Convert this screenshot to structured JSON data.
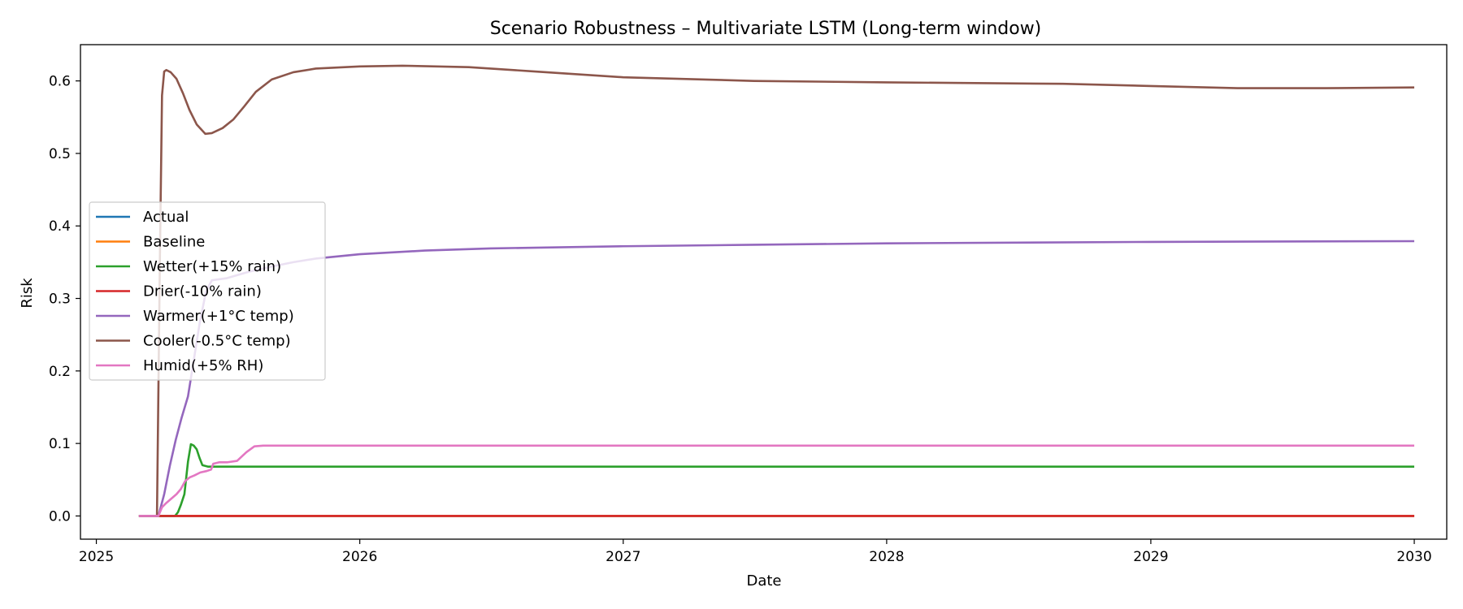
{
  "chart_data": {
    "type": "line",
    "title": "Scenario Robustness – Multivariate LSTM (Long-term window)",
    "xlabel": "Date",
    "ylabel": "Risk",
    "x_type": "date",
    "xlim": [
      "2024-12-10",
      "2030-02-15"
    ],
    "ylim": [
      -0.032,
      0.65
    ],
    "x_ticks": [
      {
        "value": "2025-01-01",
        "label": "2025"
      },
      {
        "value": "2026-01-01",
        "label": "2026"
      },
      {
        "value": "2027-01-01",
        "label": "2027"
      },
      {
        "value": "2028-01-01",
        "label": "2028"
      },
      {
        "value": "2029-01-01",
        "label": "2029"
      },
      {
        "value": "2030-01-01",
        "label": "2030"
      }
    ],
    "y_ticks": [
      0.0,
      0.1,
      0.2,
      0.3,
      0.4,
      0.5,
      0.6
    ],
    "y_tick_labels": [
      "0.0",
      "0.1",
      "0.2",
      "0.3",
      "0.4",
      "0.5",
      "0.6"
    ],
    "grid": false,
    "legend": {
      "position": "center-left"
    },
    "series": [
      {
        "name": "Actual",
        "color": "#1f77b4",
        "points": [
          [
            "2025-03-01",
            0.0
          ],
          [
            "2030-01-01",
            0.0
          ]
        ]
      },
      {
        "name": "Baseline",
        "color": "#ff7f0e",
        "points": [
          [
            "2025-03-01",
            0.0
          ],
          [
            "2030-01-01",
            0.0
          ]
        ]
      },
      {
        "name": "Wetter(+15% rain)",
        "color": "#2ca02c",
        "points": [
          [
            "2025-03-01",
            0.0
          ],
          [
            "2025-04-20",
            0.0
          ],
          [
            "2025-04-24",
            0.005
          ],
          [
            "2025-04-28",
            0.015
          ],
          [
            "2025-05-03",
            0.03
          ],
          [
            "2025-05-08",
            0.075
          ],
          [
            "2025-05-12",
            0.099
          ],
          [
            "2025-05-16",
            0.097
          ],
          [
            "2025-05-20",
            0.092
          ],
          [
            "2025-05-24",
            0.08
          ],
          [
            "2025-05-28",
            0.07
          ],
          [
            "2025-06-05",
            0.068
          ],
          [
            "2030-01-01",
            0.068
          ]
        ]
      },
      {
        "name": "Drier(-10% rain)",
        "color": "#d62728",
        "points": [
          [
            "2025-03-01",
            0.0
          ],
          [
            "2030-01-01",
            0.0
          ]
        ]
      },
      {
        "name": "Warmer(+1°C temp)",
        "color": "#9467bd",
        "points": [
          [
            "2025-03-01",
            0.0
          ],
          [
            "2025-03-28",
            0.0
          ],
          [
            "2025-04-05",
            0.03
          ],
          [
            "2025-04-13",
            0.07
          ],
          [
            "2025-04-21",
            0.105
          ],
          [
            "2025-04-29",
            0.135
          ],
          [
            "2025-05-08",
            0.165
          ],
          [
            "2025-05-16",
            0.215
          ],
          [
            "2025-05-24",
            0.265
          ],
          [
            "2025-06-02",
            0.31
          ],
          [
            "2025-06-10",
            0.325
          ],
          [
            "2025-07-01",
            0.328
          ],
          [
            "2025-08-01",
            0.337
          ],
          [
            "2025-09-01",
            0.344
          ],
          [
            "2025-10-01",
            0.35
          ],
          [
            "2025-11-01",
            0.355
          ],
          [
            "2026-01-01",
            0.361
          ],
          [
            "2026-04-01",
            0.366
          ],
          [
            "2026-07-01",
            0.369
          ],
          [
            "2027-01-01",
            0.372
          ],
          [
            "2027-07-01",
            0.374
          ],
          [
            "2028-01-01",
            0.376
          ],
          [
            "2029-01-01",
            0.378
          ],
          [
            "2030-01-01",
            0.379
          ]
        ]
      },
      {
        "name": "Cooler(-0.5°C temp)",
        "color": "#8c564b",
        "points": [
          [
            "2025-03-01",
            0.0
          ],
          [
            "2025-03-20",
            0.0
          ],
          [
            "2025-03-26",
            0.0
          ],
          [
            "2025-03-30",
            0.35
          ],
          [
            "2025-04-02",
            0.58
          ],
          [
            "2025-04-05",
            0.613
          ],
          [
            "2025-04-08",
            0.615
          ],
          [
            "2025-04-14",
            0.612
          ],
          [
            "2025-04-22",
            0.603
          ],
          [
            "2025-05-01",
            0.583
          ],
          [
            "2025-05-10",
            0.56
          ],
          [
            "2025-05-20",
            0.54
          ],
          [
            "2025-06-01",
            0.527
          ],
          [
            "2025-06-10",
            0.528
          ],
          [
            "2025-06-25",
            0.535
          ],
          [
            "2025-07-10",
            0.547
          ],
          [
            "2025-07-25",
            0.565
          ],
          [
            "2025-08-10",
            0.585
          ],
          [
            "2025-09-01",
            0.602
          ],
          [
            "2025-10-01",
            0.612
          ],
          [
            "2025-11-01",
            0.617
          ],
          [
            "2026-01-01",
            0.62
          ],
          [
            "2026-03-01",
            0.621
          ],
          [
            "2026-06-01",
            0.619
          ],
          [
            "2026-09-01",
            0.613
          ],
          [
            "2027-01-01",
            0.605
          ],
          [
            "2027-07-01",
            0.6
          ],
          [
            "2028-01-01",
            0.598
          ],
          [
            "2028-09-01",
            0.596
          ],
          [
            "2029-01-01",
            0.593
          ],
          [
            "2029-05-01",
            0.59
          ],
          [
            "2029-09-01",
            0.59
          ],
          [
            "2030-01-01",
            0.591
          ]
        ]
      },
      {
        "name": "Humid(+5% RH)",
        "color": "#e377c2",
        "points": [
          [
            "2025-03-01",
            0.0
          ],
          [
            "2025-03-28",
            0.0
          ],
          [
            "2025-04-02",
            0.012
          ],
          [
            "2025-04-08",
            0.018
          ],
          [
            "2025-04-15",
            0.024
          ],
          [
            "2025-04-22",
            0.03
          ],
          [
            "2025-04-28",
            0.037
          ],
          [
            "2025-05-04",
            0.048
          ],
          [
            "2025-05-10",
            0.053
          ],
          [
            "2025-05-17",
            0.056
          ],
          [
            "2025-05-25",
            0.06
          ],
          [
            "2025-06-03",
            0.062
          ],
          [
            "2025-06-09",
            0.064
          ],
          [
            "2025-06-12",
            0.072
          ],
          [
            "2025-06-20",
            0.074
          ],
          [
            "2025-07-01",
            0.074
          ],
          [
            "2025-07-15",
            0.076
          ],
          [
            "2025-07-28",
            0.088
          ],
          [
            "2025-08-08",
            0.096
          ],
          [
            "2025-08-20",
            0.097
          ],
          [
            "2030-01-01",
            0.097
          ]
        ]
      }
    ]
  }
}
